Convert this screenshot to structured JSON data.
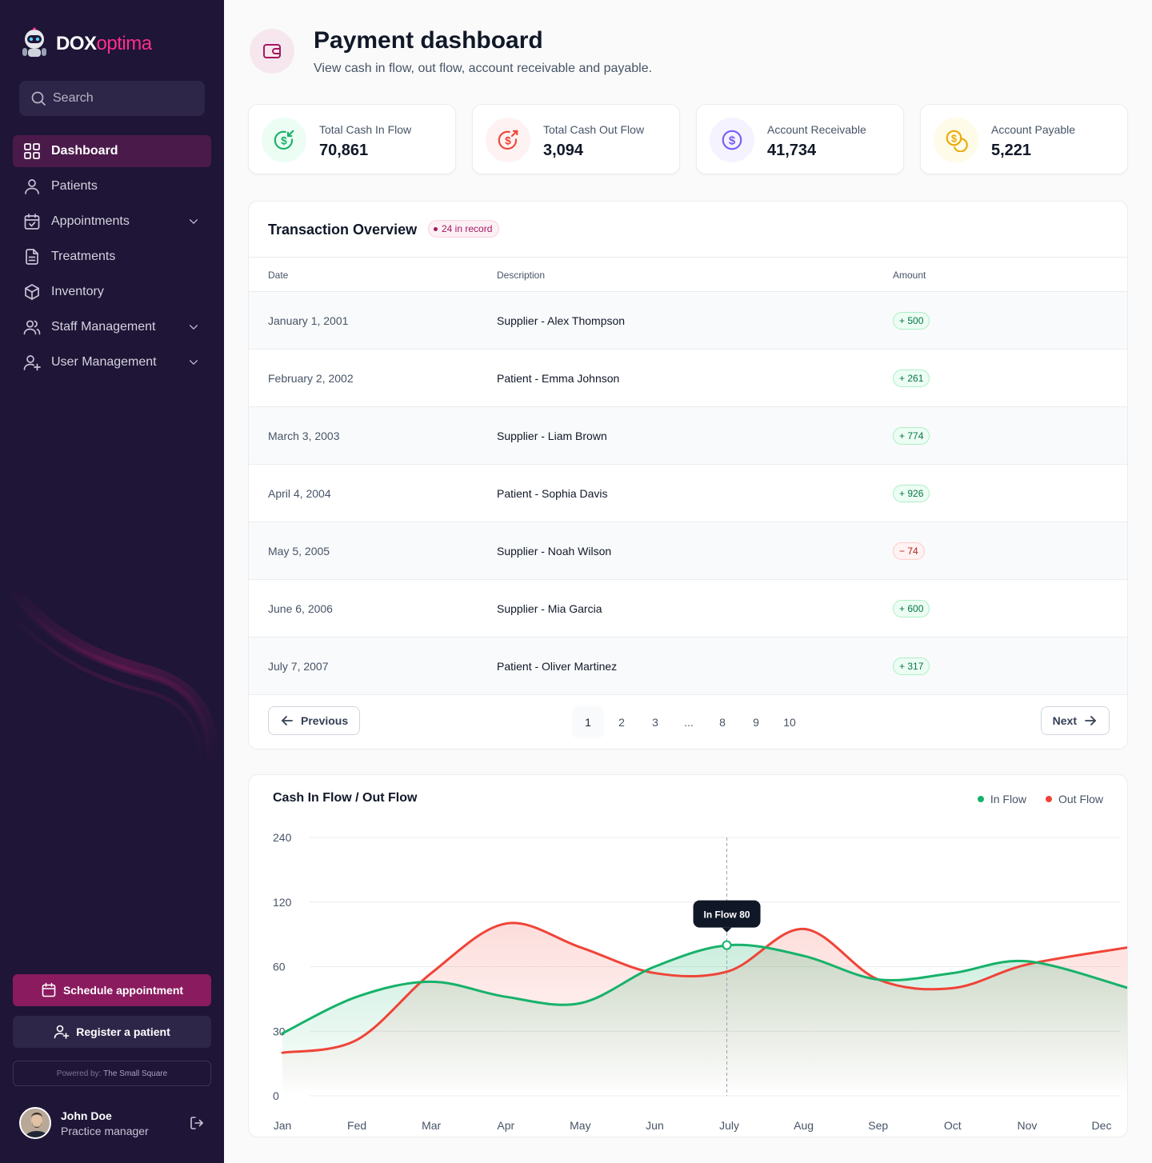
{
  "app": {
    "logo_prefix": "DOX",
    "logo_suffix": "optima"
  },
  "search": {
    "placeholder": "Search"
  },
  "sidebar": {
    "items": [
      {
        "label": "Dashboard",
        "icon": "grid-icon",
        "active": true,
        "expandable": false
      },
      {
        "label": "Patients",
        "icon": "user-icon",
        "active": false,
        "expandable": false
      },
      {
        "label": "Appointments",
        "icon": "calendar-check-icon",
        "active": false,
        "expandable": true
      },
      {
        "label": "Treatments",
        "icon": "document-icon",
        "active": false,
        "expandable": false
      },
      {
        "label": "Inventory",
        "icon": "box-icon",
        "active": false,
        "expandable": false
      },
      {
        "label": "Staff Management",
        "icon": "users-icon",
        "active": false,
        "expandable": true
      },
      {
        "label": "User Management",
        "icon": "user-plus-icon",
        "active": false,
        "expandable": true
      }
    ],
    "schedule_label": "Schedule appointment",
    "register_label": "Register a patient",
    "powered_prefix": "Powered by:",
    "powered_name": "The Small Square",
    "user": {
      "name": "John Doe",
      "role": "Practice manager"
    }
  },
  "header": {
    "title": "Payment dashboard",
    "subtitle": "View cash in flow, out flow, account receivable and payable."
  },
  "stats": [
    {
      "label": "Total Cash In Flow",
      "value": "70,861",
      "icon": "cash-in-icon",
      "color": "#17b26a",
      "bg": "#ecfdf3"
    },
    {
      "label": "Total Cash Out Flow",
      "value": "3,094",
      "icon": "cash-out-icon",
      "color": "#f04438",
      "bg": "#fef3f2"
    },
    {
      "label": "Account Receivable",
      "value": "41,734",
      "icon": "dollar-circle-icon",
      "color": "#7a5af8",
      "bg": "#f4f3ff"
    },
    {
      "label": "Account Payable",
      "value": "5,221",
      "icon": "coins-icon",
      "color": "#eaaa08",
      "bg": "#fefbe8"
    }
  ],
  "transactions": {
    "title": "Transaction Overview",
    "badge": "24 in record",
    "columns": {
      "date": "Date",
      "description": "Description",
      "amount": "Amount"
    },
    "rows": [
      {
        "date": "January 1, 2001",
        "description": "Supplier - Alex Thompson",
        "amount": "+ 500",
        "positive": true
      },
      {
        "date": "February 2, 2002",
        "description": "Patient - Emma Johnson",
        "amount": "+ 261",
        "positive": true
      },
      {
        "date": "March 3, 2003",
        "description": "Supplier - Liam Brown",
        "amount": "+ 774",
        "positive": true
      },
      {
        "date": "April 4, 2004",
        "description": "Patient - Sophia Davis",
        "amount": "+ 926",
        "positive": true
      },
      {
        "date": "May 5, 2005",
        "description": "Supplier - Noah Wilson",
        "amount": "− 74",
        "positive": false
      },
      {
        "date": "June 6, 2006",
        "description": "Supplier - Mia Garcia",
        "amount": "+ 600",
        "positive": true
      },
      {
        "date": "July 7, 2007",
        "description": "Patient - Oliver Martinez",
        "amount": "+ 317",
        "positive": true
      }
    ],
    "pagination": {
      "previous": "Previous",
      "next": "Next",
      "pages": [
        "1",
        "2",
        "3",
        "...",
        "8",
        "9",
        "10"
      ],
      "current": "1"
    }
  },
  "chart_data": {
    "type": "area",
    "title": "Cash In Flow / Out Flow",
    "categories": [
      "Jan",
      "Fed",
      "Mar",
      "Apr",
      "May",
      "Jun",
      "July",
      "Aug",
      "Sep",
      "Oct",
      "Nov",
      "Dec"
    ],
    "y_ticks": [
      "0",
      "30",
      "60",
      "120",
      "240"
    ],
    "series": [
      {
        "name": "In Flow",
        "color": "#17b26a",
        "values": [
          29,
          46,
          53,
          46,
          43,
          60,
          80,
          70,
          54,
          57,
          65,
          50
        ]
      },
      {
        "name": "Out Flow",
        "color": "#f04438",
        "values": [
          20,
          26,
          57,
          100,
          78,
          57,
          58,
          95,
          54,
          50,
          62,
          78
        ]
      }
    ],
    "tooltip": {
      "label": "In Flow 80",
      "category": "July"
    },
    "legend_position": "top-right",
    "grid": true
  }
}
